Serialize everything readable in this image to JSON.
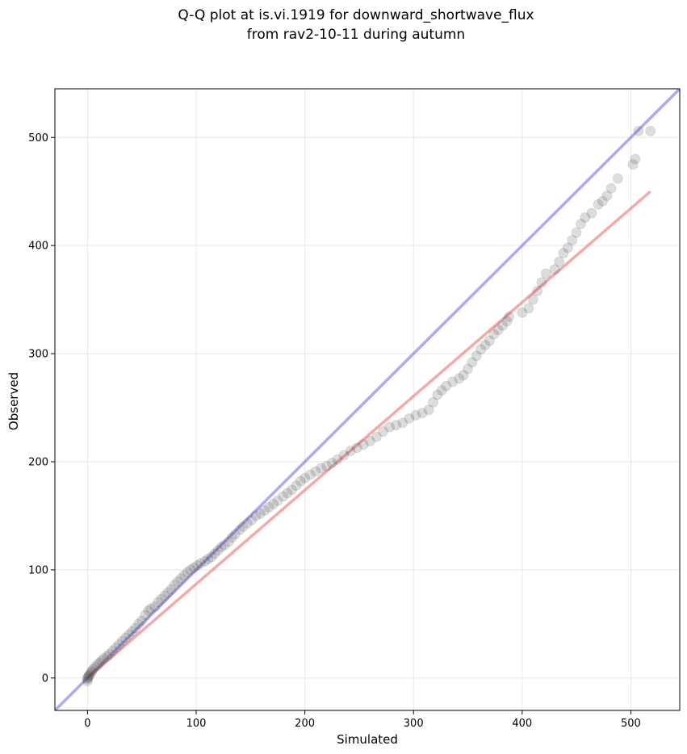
{
  "chart_data": {
    "type": "scatter",
    "title_line1": "Q-Q plot at is.vi.1919 for downward_shortwave_flux",
    "title_line2": "from rav2-10-11 during autumn",
    "xlabel": "Simulated",
    "ylabel": "Observed",
    "xlim": [
      -30,
      545
    ],
    "ylim": [
      -30,
      545
    ],
    "xticks": [
      0,
      100,
      200,
      300,
      400,
      500
    ],
    "yticks": [
      0,
      100,
      200,
      300,
      400,
      500
    ],
    "grid": true,
    "colors": {
      "points": "#404040",
      "one_to_one_line": "#6666ee",
      "fit_line": "#ee6666"
    },
    "one_to_one_line": {
      "x": [
        -30,
        545
      ],
      "y": [
        -30,
        545
      ]
    },
    "fit_line": {
      "x": [
        0,
        518
      ],
      "y": [
        0,
        450
      ]
    },
    "points": [
      [
        0,
        -3
      ],
      [
        0,
        -1
      ],
      [
        0,
        0
      ],
      [
        1,
        1
      ],
      [
        1,
        2
      ],
      [
        2,
        3
      ],
      [
        3,
        5
      ],
      [
        4,
        6
      ],
      [
        5,
        8
      ],
      [
        7,
        10
      ],
      [
        9,
        12
      ],
      [
        11,
        14
      ],
      [
        13,
        16
      ],
      [
        15,
        18
      ],
      [
        18,
        20
      ],
      [
        20,
        22
      ],
      [
        23,
        25
      ],
      [
        26,
        28
      ],
      [
        29,
        31
      ],
      [
        32,
        34
      ],
      [
        35,
        37
      ],
      [
        38,
        40
      ],
      [
        41,
        43
      ],
      [
        44,
        46
      ],
      [
        47,
        50
      ],
      [
        50,
        53
      ],
      [
        53,
        58
      ],
      [
        56,
        62
      ],
      [
        58,
        64
      ],
      [
        62,
        66
      ],
      [
        65,
        70
      ],
      [
        68,
        73
      ],
      [
        71,
        76
      ],
      [
        74,
        79
      ],
      [
        77,
        82
      ],
      [
        80,
        86
      ],
      [
        83,
        89
      ],
      [
        86,
        92
      ],
      [
        89,
        95
      ],
      [
        92,
        98
      ],
      [
        95,
        100
      ],
      [
        98,
        102
      ],
      [
        101,
        104
      ],
      [
        104,
        106
      ],
      [
        108,
        108
      ],
      [
        111,
        110
      ],
      [
        114,
        112
      ],
      [
        117,
        115
      ],
      [
        120,
        118
      ],
      [
        123,
        121
      ],
      [
        126,
        123
      ],
      [
        130,
        126
      ],
      [
        133,
        130
      ],
      [
        136,
        133
      ],
      [
        140,
        137
      ],
      [
        143,
        140
      ],
      [
        147,
        143
      ],
      [
        151,
        146
      ],
      [
        155,
        150
      ],
      [
        159,
        152
      ],
      [
        163,
        155
      ],
      [
        167,
        158
      ],
      [
        171,
        161
      ],
      [
        175,
        164
      ],
      [
        180,
        168
      ],
      [
        184,
        171
      ],
      [
        188,
        174
      ],
      [
        192,
        178
      ],
      [
        196,
        182
      ],
      [
        200,
        185
      ],
      [
        205,
        188
      ],
      [
        210,
        191
      ],
      [
        215,
        194
      ],
      [
        220,
        196
      ],
      [
        225,
        199
      ],
      [
        230,
        202
      ],
      [
        236,
        206
      ],
      [
        242,
        210
      ],
      [
        248,
        213
      ],
      [
        254,
        216
      ],
      [
        260,
        219
      ],
      [
        266,
        223
      ],
      [
        272,
        228
      ],
      [
        278,
        232
      ],
      [
        284,
        234
      ],
      [
        290,
        236
      ],
      [
        296,
        240
      ],
      [
        302,
        243
      ],
      [
        308,
        245
      ],
      [
        314,
        248
      ],
      [
        318,
        255
      ],
      [
        322,
        262
      ],
      [
        326,
        266
      ],
      [
        330,
        270
      ],
      [
        336,
        274
      ],
      [
        342,
        277
      ],
      [
        346,
        280
      ],
      [
        350,
        286
      ],
      [
        354,
        292
      ],
      [
        358,
        298
      ],
      [
        362,
        304
      ],
      [
        366,
        308
      ],
      [
        370,
        312
      ],
      [
        374,
        318
      ],
      [
        378,
        322
      ],
      [
        382,
        326
      ],
      [
        386,
        330
      ],
      [
        388,
        334
      ],
      [
        400,
        338
      ],
      [
        406,
        342
      ],
      [
        410,
        350
      ],
      [
        414,
        358
      ],
      [
        418,
        366
      ],
      [
        422,
        374
      ],
      [
        430,
        378
      ],
      [
        434,
        385
      ],
      [
        438,
        393
      ],
      [
        442,
        398
      ],
      [
        446,
        405
      ],
      [
        450,
        412
      ],
      [
        454,
        420
      ],
      [
        458,
        426
      ],
      [
        464,
        430
      ],
      [
        470,
        438
      ],
      [
        474,
        441
      ],
      [
        478,
        446
      ],
      [
        482,
        453
      ],
      [
        488,
        462
      ],
      [
        502,
        475
      ],
      [
        504,
        480
      ],
      [
        507,
        506
      ],
      [
        518,
        506
      ]
    ]
  }
}
